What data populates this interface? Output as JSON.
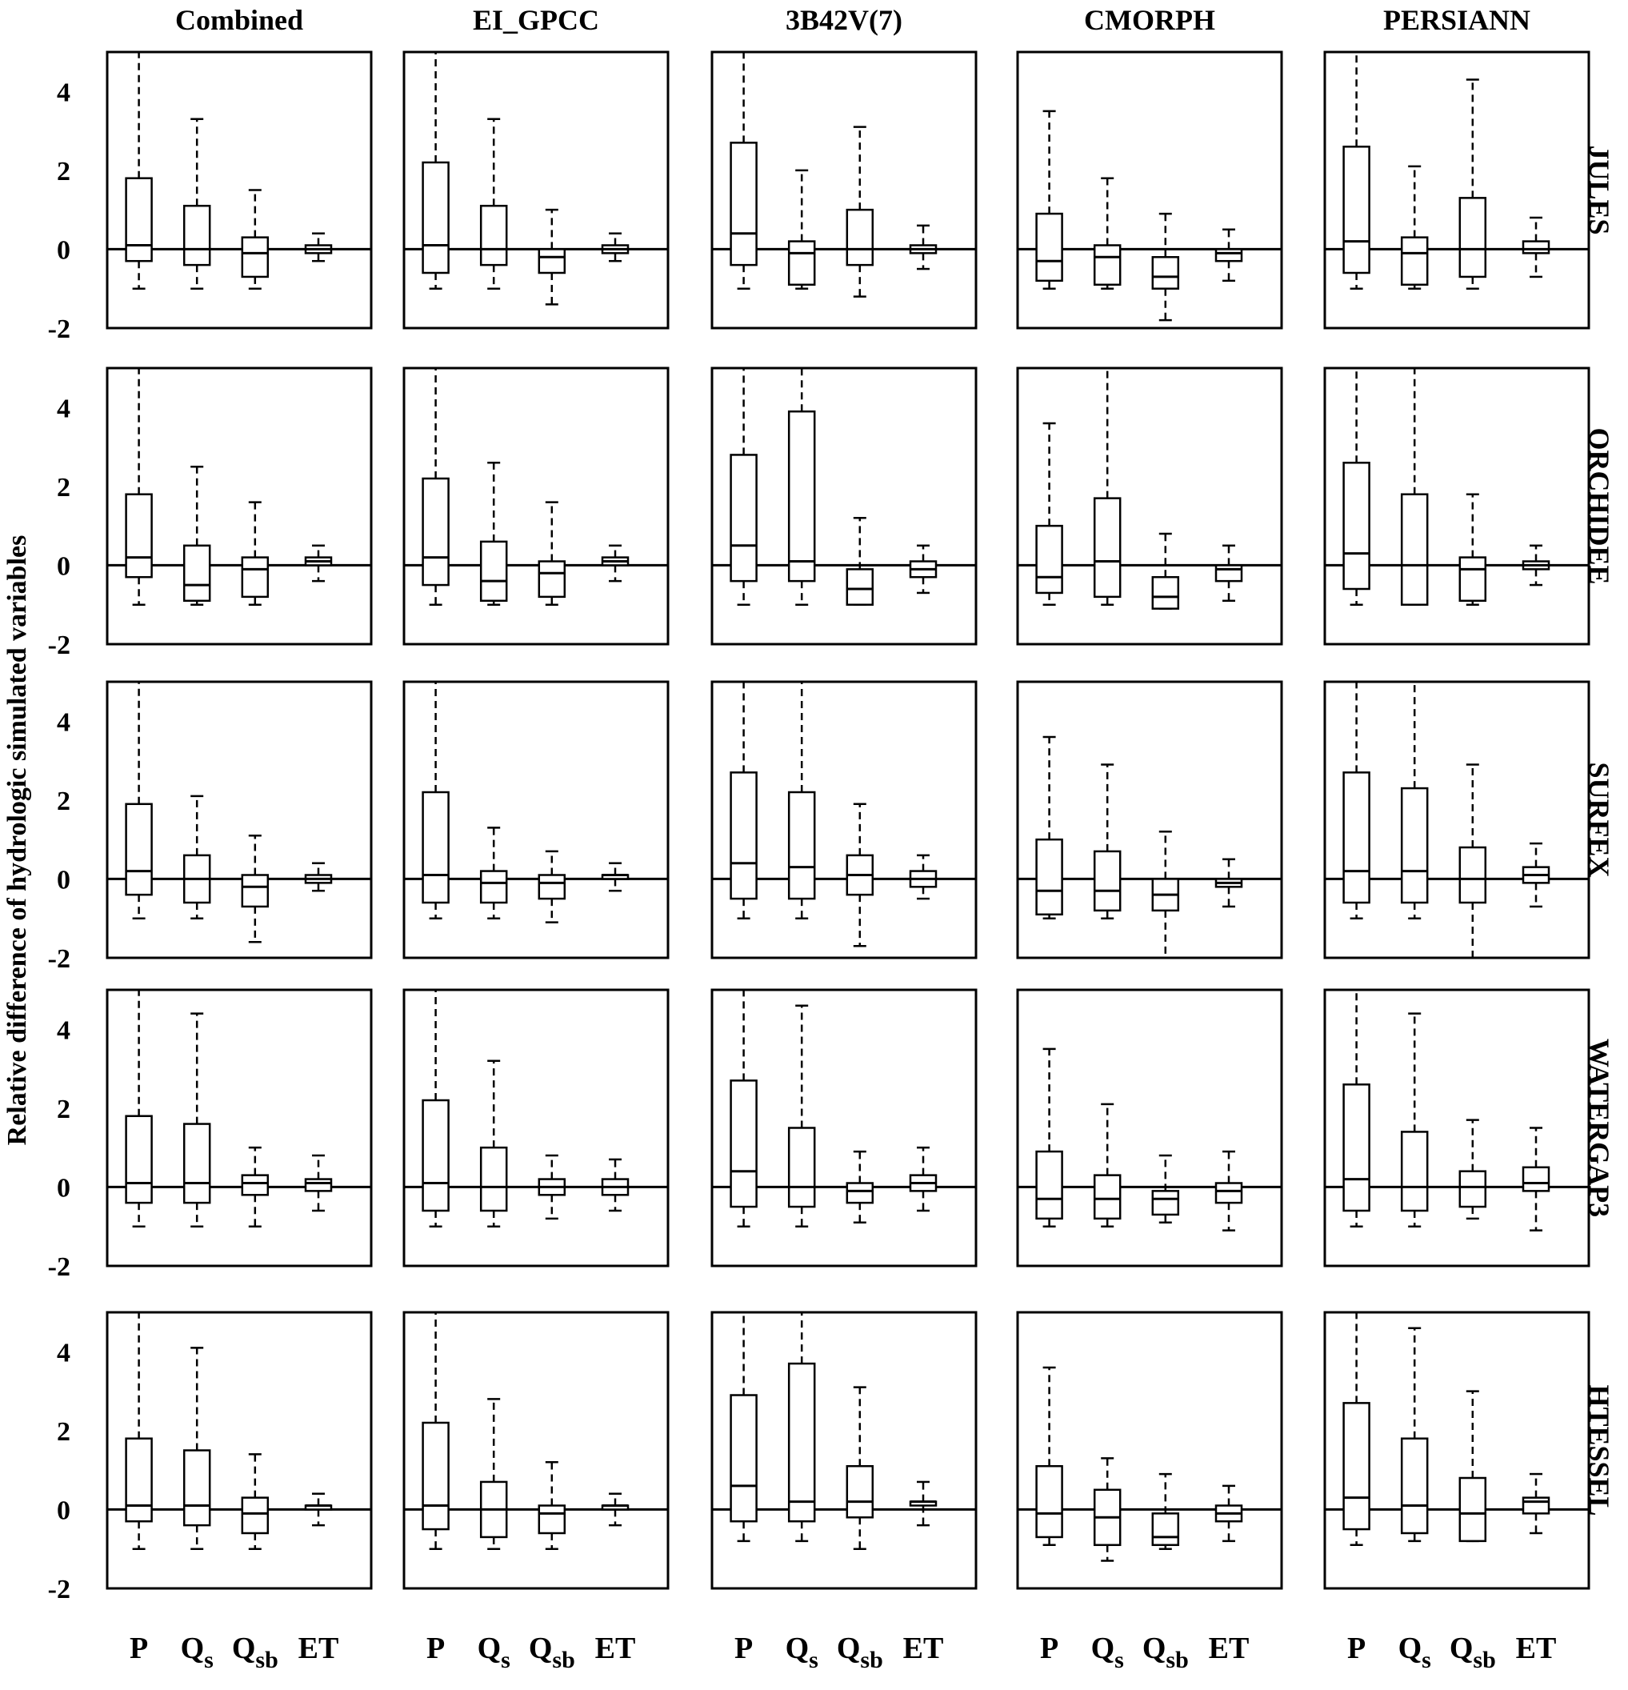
{
  "chart_data": {
    "type": "boxplot-grid",
    "ylabel": "Relative difference of hydrologic simulated variables",
    "ylim": [
      -2,
      5
    ],
    "yticks": [
      -2,
      0,
      2,
      4
    ],
    "columns": [
      "Combined",
      "EI_GPCC",
      "3B42V(7)",
      "CMORPH",
      "PERSIANN"
    ],
    "rows": [
      "JULES",
      "ORCHIDEE",
      "SURFEX",
      "WATERGAP3",
      "HTESSEL"
    ],
    "variables": [
      {
        "main": "P",
        "sub": ""
      },
      {
        "main": "Q",
        "sub": "s"
      },
      {
        "main": "Q",
        "sub": "sb"
      },
      {
        "main": "ET",
        "sub": ""
      }
    ],
    "grid": false,
    "note": "Each box gives whisker low, Q1, median, Q3, whisker high (values above 5 are clipped at the panel top)",
    "panels": [
      [
        [
          [
            -1.0,
            -0.3,
            0.1,
            1.8,
            5.0
          ],
          [
            -1.0,
            -0.4,
            0.0,
            1.1,
            3.3
          ],
          [
            -1.0,
            -0.7,
            -0.1,
            0.3,
            1.5
          ],
          [
            -0.3,
            -0.1,
            0.0,
            0.1,
            0.4
          ]
        ],
        [
          [
            -1.0,
            -0.6,
            0.1,
            2.2,
            5.0
          ],
          [
            -1.0,
            -0.4,
            0.0,
            1.1,
            3.3
          ],
          [
            -1.4,
            -0.6,
            -0.2,
            0.0,
            1.0
          ],
          [
            -0.3,
            -0.1,
            0.0,
            0.1,
            0.4
          ]
        ],
        [
          [
            -1.0,
            -0.4,
            0.4,
            2.7,
            5.0
          ],
          [
            -1.0,
            -0.9,
            -0.1,
            0.2,
            2.0
          ],
          [
            -1.2,
            -0.4,
            0.0,
            1.0,
            3.1
          ],
          [
            -0.5,
            -0.1,
            0.0,
            0.1,
            0.6
          ]
        ],
        [
          [
            -1.0,
            -0.8,
            -0.3,
            0.9,
            3.5
          ],
          [
            -1.0,
            -0.9,
            -0.2,
            0.1,
            1.8
          ],
          [
            -1.8,
            -1.0,
            -0.7,
            -0.2,
            0.9
          ],
          [
            -0.8,
            -0.3,
            -0.1,
            0.0,
            0.5
          ]
        ],
        [
          [
            -1.0,
            -0.6,
            0.2,
            2.6,
            5.0
          ],
          [
            -1.0,
            -0.9,
            -0.1,
            0.3,
            2.1
          ],
          [
            -1.0,
            -0.7,
            0.0,
            1.3,
            4.3
          ],
          [
            -0.7,
            -0.1,
            0.0,
            0.2,
            0.8
          ]
        ]
      ],
      [
        [
          [
            -1.0,
            -0.3,
            0.2,
            1.8,
            5.0
          ],
          [
            -1.0,
            -0.9,
            -0.5,
            0.5,
            2.5
          ],
          [
            -1.0,
            -0.8,
            -0.1,
            0.2,
            1.6
          ],
          [
            -0.4,
            0.0,
            0.1,
            0.2,
            0.5
          ]
        ],
        [
          [
            -1.0,
            -0.5,
            0.2,
            2.2,
            5.0
          ],
          [
            -1.0,
            -0.9,
            -0.4,
            0.6,
            2.6
          ],
          [
            -1.0,
            -0.8,
            -0.2,
            0.1,
            1.6
          ],
          [
            -0.4,
            0.0,
            0.1,
            0.2,
            0.5
          ]
        ],
        [
          [
            -1.0,
            -0.4,
            0.5,
            2.8,
            5.0
          ],
          [
            -1.0,
            -0.4,
            0.1,
            3.9,
            5.0
          ],
          [
            -1.0,
            -1.0,
            -0.6,
            -0.1,
            1.2
          ],
          [
            -0.7,
            -0.3,
            -0.1,
            0.1,
            0.5
          ]
        ],
        [
          [
            -1.0,
            -0.7,
            -0.3,
            1.0,
            3.6
          ],
          [
            -1.0,
            -0.8,
            0.1,
            1.7,
            5.0
          ],
          [
            -1.1,
            -1.1,
            -0.8,
            -0.3,
            0.8
          ],
          [
            -0.9,
            -0.4,
            -0.1,
            0.0,
            0.5
          ]
        ],
        [
          [
            -1.0,
            -0.6,
            0.3,
            2.6,
            5.0
          ],
          [
            -1.0,
            -1.0,
            0.0,
            1.8,
            5.0
          ],
          [
            -1.0,
            -0.9,
            -0.1,
            0.2,
            1.8
          ],
          [
            -0.5,
            -0.1,
            0.0,
            0.1,
            0.5
          ]
        ]
      ],
      [
        [
          [
            -1.0,
            -0.4,
            0.2,
            1.9,
            5.0
          ],
          [
            -1.0,
            -0.6,
            0.0,
            0.6,
            2.1
          ],
          [
            -1.6,
            -0.7,
            -0.2,
            0.1,
            1.1
          ],
          [
            -0.3,
            -0.1,
            0.0,
            0.1,
            0.4
          ]
        ],
        [
          [
            -1.0,
            -0.6,
            0.1,
            2.2,
            5.0
          ],
          [
            -1.0,
            -0.6,
            -0.1,
            0.2,
            1.3
          ],
          [
            -1.1,
            -0.5,
            -0.1,
            0.1,
            0.7
          ],
          [
            -0.3,
            0.0,
            0.1,
            0.1,
            0.4
          ]
        ],
        [
          [
            -1.0,
            -0.5,
            0.4,
            2.7,
            5.0
          ],
          [
            -1.0,
            -0.5,
            0.3,
            2.2,
            5.0
          ],
          [
            -1.7,
            -0.4,
            0.1,
            0.6,
            1.9
          ],
          [
            -0.5,
            -0.2,
            0.0,
            0.2,
            0.6
          ]
        ],
        [
          [
            -1.0,
            -0.9,
            -0.3,
            1.0,
            3.6
          ],
          [
            -1.0,
            -0.8,
            -0.3,
            0.7,
            2.9
          ],
          [
            -2.0,
            -0.8,
            -0.4,
            0.0,
            1.2
          ],
          [
            -0.7,
            -0.2,
            -0.1,
            0.0,
            0.5
          ]
        ],
        [
          [
            -1.0,
            -0.6,
            0.2,
            2.7,
            5.0
          ],
          [
            -1.0,
            -0.6,
            0.2,
            2.3,
            5.0
          ],
          [
            -2.0,
            -0.6,
            0.0,
            0.8,
            2.9
          ],
          [
            -0.7,
            -0.1,
            0.1,
            0.3,
            0.9
          ]
        ]
      ],
      [
        [
          [
            -1.0,
            -0.4,
            0.1,
            1.8,
            5.0
          ],
          [
            -1.0,
            -0.4,
            0.1,
            1.6,
            4.4
          ],
          [
            -1.0,
            -0.2,
            0.1,
            0.3,
            1.0
          ],
          [
            -0.6,
            -0.1,
            0.1,
            0.2,
            0.8
          ]
        ],
        [
          [
            -1.0,
            -0.6,
            0.1,
            2.2,
            5.0
          ],
          [
            -1.0,
            -0.6,
            0.0,
            1.0,
            3.2
          ],
          [
            -0.8,
            -0.2,
            0.0,
            0.2,
            0.8
          ],
          [
            -0.6,
            -0.2,
            0.0,
            0.2,
            0.7
          ]
        ],
        [
          [
            -1.0,
            -0.5,
            0.4,
            2.7,
            5.0
          ],
          [
            -1.0,
            -0.5,
            0.0,
            1.5,
            4.6
          ],
          [
            -0.9,
            -0.4,
            -0.1,
            0.1,
            0.9
          ],
          [
            -0.6,
            -0.1,
            0.1,
            0.3,
            1.0
          ]
        ],
        [
          [
            -1.0,
            -0.8,
            -0.3,
            0.9,
            3.5
          ],
          [
            -1.0,
            -0.8,
            -0.3,
            0.3,
            2.1
          ],
          [
            -0.9,
            -0.7,
            -0.3,
            -0.1,
            0.8
          ],
          [
            -1.1,
            -0.4,
            -0.1,
            0.1,
            0.9
          ]
        ],
        [
          [
            -1.0,
            -0.6,
            0.2,
            2.6,
            5.0
          ],
          [
            -1.0,
            -0.6,
            0.0,
            1.4,
            4.4
          ],
          [
            -0.8,
            -0.5,
            0.0,
            0.4,
            1.7
          ],
          [
            -1.1,
            -0.1,
            0.1,
            0.5,
            1.5
          ]
        ]
      ],
      [
        [
          [
            -1.0,
            -0.3,
            0.1,
            1.8,
            5.0
          ],
          [
            -1.0,
            -0.4,
            0.1,
            1.5,
            4.1
          ],
          [
            -1.0,
            -0.6,
            -0.1,
            0.3,
            1.4
          ],
          [
            -0.4,
            0.0,
            0.1,
            0.1,
            0.4
          ]
        ],
        [
          [
            -1.0,
            -0.5,
            0.1,
            2.2,
            5.0
          ],
          [
            -1.0,
            -0.7,
            0.0,
            0.7,
            2.8
          ],
          [
            -1.0,
            -0.6,
            -0.1,
            0.1,
            1.2
          ],
          [
            -0.4,
            0.0,
            0.1,
            0.1,
            0.4
          ]
        ],
        [
          [
            -0.8,
            -0.3,
            0.6,
            2.9,
            5.0
          ],
          [
            -0.8,
            -0.3,
            0.2,
            3.7,
            5.0
          ],
          [
            -1.0,
            -0.2,
            0.2,
            1.1,
            3.1
          ],
          [
            -0.4,
            0.1,
            0.2,
            0.2,
            0.7
          ]
        ],
        [
          [
            -0.9,
            -0.7,
            -0.1,
            1.1,
            3.6
          ],
          [
            -1.3,
            -0.9,
            -0.2,
            0.5,
            1.3
          ],
          [
            -1.0,
            -0.9,
            -0.7,
            -0.1,
            0.9
          ],
          [
            -0.8,
            -0.3,
            -0.1,
            0.1,
            0.6
          ]
        ],
        [
          [
            -0.9,
            -0.5,
            0.3,
            2.7,
            5.0
          ],
          [
            -0.8,
            -0.6,
            0.1,
            1.8,
            4.6
          ],
          [
            -0.8,
            -0.8,
            -0.1,
            0.8,
            3.0
          ],
          [
            -0.6,
            -0.1,
            0.2,
            0.3,
            0.9
          ]
        ]
      ]
    ]
  }
}
